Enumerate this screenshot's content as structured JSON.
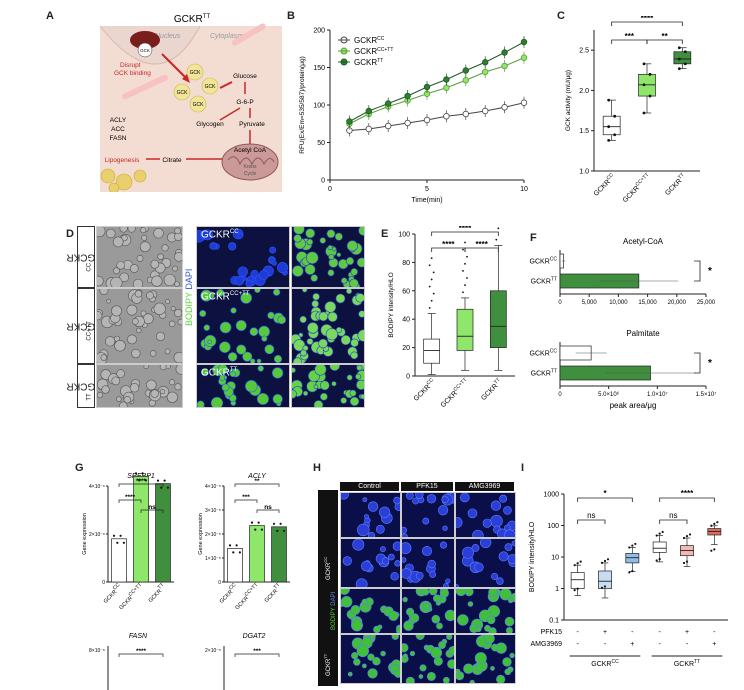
{
  "panels": {
    "A": "A",
    "B": "B",
    "C": "C",
    "D": "D",
    "E": "E",
    "F": "F",
    "G": "G",
    "H": "H",
    "I": "I"
  },
  "panelA": {
    "title": "GCKR",
    "title_sup": "TT",
    "nucleus": "Nucleus",
    "cytoplasm": "Cytoplasm",
    "gckr": "GCKR TT",
    "gck": "GCK",
    "disrupt": "Disrupt",
    "disrupt2": "GCK binding",
    "glucose": "Glucose",
    "g6p": "G-6-P",
    "glycogen": "Glycogen",
    "pyruvate": "Pyruvate",
    "acly": "ACLY",
    "acc": "ACC",
    "fasn": "FASN",
    "lipogenesis": "Lipogenesis",
    "citrate": "Citrate",
    "acetylcoa": "Acetyl CoA",
    "mito1": "Krebs",
    "mito2": "Cycle"
  },
  "chart_data": [
    {
      "id": "B",
      "type": "line",
      "xlabel": "Time(min)",
      "ylabel": "RFU(Ex/Em=535/587)/protein(μg)",
      "xlim": [
        0,
        10
      ],
      "ylim": [
        0,
        200
      ],
      "xticks": [
        0,
        5,
        10
      ],
      "yticks": [
        0,
        50,
        100,
        150,
        200
      ],
      "legend": [
        {
          "name": "GCKR",
          "sup": "CC"
        },
        {
          "name": "GCKR",
          "sup": "CC+TT"
        },
        {
          "name": "GCKR",
          "sup": "TT"
        }
      ],
      "x": [
        1,
        2,
        3,
        4,
        5,
        6,
        7,
        8,
        9,
        10
      ],
      "series": [
        {
          "name": "GCKR CC",
          "values": [
            66,
            68,
            72,
            76,
            80,
            85,
            88,
            92,
            97,
            103
          ],
          "color": "#ffffff"
        },
        {
          "name": "GCKR CC+TT",
          "values": [
            75,
            88,
            98,
            106,
            115,
            123,
            133,
            144,
            152,
            163
          ],
          "color": "#8ee66a"
        },
        {
          "name": "GCKR TT",
          "values": [
            78,
            92,
            102,
            112,
            124,
            134,
            146,
            157,
            170,
            184
          ],
          "color": "#2e7d32"
        }
      ]
    },
    {
      "id": "C",
      "type": "box",
      "ylabel": "GCK activity (mU/μg)",
      "ylim": [
        1.0,
        2.75
      ],
      "yticks": [
        1.0,
        1.5,
        2.0,
        2.5
      ],
      "categories": [
        "GCKR CC",
        "GCKR CC+TT",
        "GCKR TT"
      ],
      "boxes": [
        {
          "min": 1.38,
          "q1": 1.45,
          "median": 1.55,
          "q3": 1.68,
          "max": 1.88
        },
        {
          "min": 1.72,
          "q1": 1.93,
          "median": 2.07,
          "q3": 2.2,
          "max": 2.33
        },
        {
          "min": 2.27,
          "q1": 2.33,
          "median": 2.39,
          "q3": 2.48,
          "max": 2.53
        }
      ],
      "sig": [
        "****",
        "***",
        "**"
      ]
    },
    {
      "id": "E",
      "type": "box",
      "ylabel": "BODIPY intensity/HLO",
      "ylim": [
        0,
        100
      ],
      "yticks": [
        0,
        20,
        40,
        60,
        80,
        100
      ],
      "categories": [
        "GCKR CC",
        "GCKR CC+TT",
        "GCKR TT"
      ],
      "boxes": [
        {
          "min": 1,
          "q1": 9,
          "median": 18,
          "q3": 26,
          "max": 44
        },
        {
          "min": 4,
          "q1": 18,
          "median": 28,
          "q3": 47,
          "max": 55
        },
        {
          "min": 4,
          "q1": 20,
          "median": 35,
          "q3": 60,
          "max": 92
        }
      ],
      "sig": [
        "****",
        "****",
        "****"
      ]
    },
    {
      "id": "F1",
      "type": "bar",
      "title": "Acetyl-CoA",
      "categories": [
        "GCKR CC",
        "GCKR TT"
      ],
      "values": [
        600,
        13500
      ],
      "xticks": [
        "0",
        "5,000",
        "10,000",
        "15,000",
        "20,000",
        "25,000"
      ],
      "xlim": [
        0,
        25000
      ],
      "sig": "*"
    },
    {
      "id": "F2",
      "type": "bar",
      "title": "Palmitate",
      "xlabel": "peak area/μg",
      "categories": [
        "GCKR CC",
        "GCKR TT"
      ],
      "values": [
        3200000.0,
        9300000.0
      ],
      "xticks": [
        "0",
        "5.0×10⁶",
        "1.0×10⁷",
        "1.5×10⁷"
      ],
      "xlim": [
        0,
        15000000.0
      ],
      "sig": "*"
    },
    {
      "id": "G1",
      "type": "bar",
      "title": "SREBP1",
      "ylabel": "Gene expression",
      "categories": [
        "GCKR CC",
        "GCKR CC+TT",
        "GCKR TT"
      ],
      "values": [
        0.9,
        2.2,
        2.05
      ],
      "yticks": [
        "0",
        "2×10⁻⁶",
        "4×10⁻⁶"
      ],
      "sig": [
        "****",
        "****",
        "ns"
      ]
    },
    {
      "id": "G2",
      "type": "bar",
      "title": "ACLY",
      "ylabel": "Gene expression",
      "categories": [
        "GCKR CC",
        "GCKR CC+TT",
        "GCKR TT"
      ],
      "values": [
        1.4,
        2.35,
        2.3
      ],
      "yticks": [
        "0",
        "1×10⁻⁵",
        "2×10⁻⁵",
        "3×10⁻⁵",
        "4×10⁻⁵"
      ],
      "sig": [
        "**",
        "***",
        "ns"
      ]
    },
    {
      "id": "I",
      "type": "box",
      "ylabel": "BODIPY intensity/HLO",
      "log": true,
      "yticks": [
        "0.1",
        "1",
        "10",
        "100",
        "1000"
      ],
      "rows": [
        {
          "label": "PFK15",
          "marks": [
            "-",
            "+",
            "-",
            "-",
            "+",
            "-"
          ]
        },
        {
          "label": "AMG3969",
          "marks": [
            "-",
            "-",
            "+",
            "-",
            "-",
            "+"
          ]
        }
      ],
      "groups": [
        "GCKR CC",
        "GCKR TT"
      ],
      "boxes": [
        {
          "min": 0.6,
          "q1": 1.0,
          "median": 1.9,
          "q3": 3.2,
          "max": 5.5,
          "color": "#ffffff"
        },
        {
          "min": 0.5,
          "q1": 1.0,
          "median": 1.7,
          "q3": 3.6,
          "max": 6.5,
          "color": "#c8dcf2"
        },
        {
          "min": 3.5,
          "q1": 6.5,
          "median": 9.5,
          "q3": 13,
          "max": 20,
          "color": "#8fbde8"
        },
        {
          "min": 7,
          "q1": 14,
          "median": 19,
          "q3": 30,
          "max": 48,
          "color": "#ffffff"
        },
        {
          "min": 5,
          "q1": 11,
          "median": 16,
          "q3": 23,
          "max": 40,
          "color": "#f1b8b4"
        },
        {
          "min": 25,
          "q1": 50,
          "median": 65,
          "q3": 80,
          "max": 98,
          "color": "#e06a5c"
        }
      ],
      "sig": [
        "ns",
        "*",
        "ns",
        "****"
      ]
    }
  ],
  "panelD": {
    "row1": "GCKR",
    "row1sup": "CC",
    "row2": "GCKR",
    "row2sup": "CC+TT",
    "row3": "GCKR",
    "row3sup": "TT",
    "bodipy": "BODIPY",
    "dapi": "DAPI"
  },
  "panelG": {
    "fasn": "FASN",
    "dgat2": "DGAT2",
    "fasn_tick": "8×10⁻⁶",
    "dgat2_tick": "2×10⁻⁵",
    "fasn_sig": "****",
    "dgat2_sig": "***"
  },
  "panelH": {
    "cols": [
      "Control",
      "PFK15",
      "AMG3969"
    ],
    "bodipy": "BODIPY",
    "dapi": "DAPI",
    "row1": "GCKR",
    "row1sup": "CC",
    "row2": "GCKR",
    "row2sup": "TT"
  }
}
